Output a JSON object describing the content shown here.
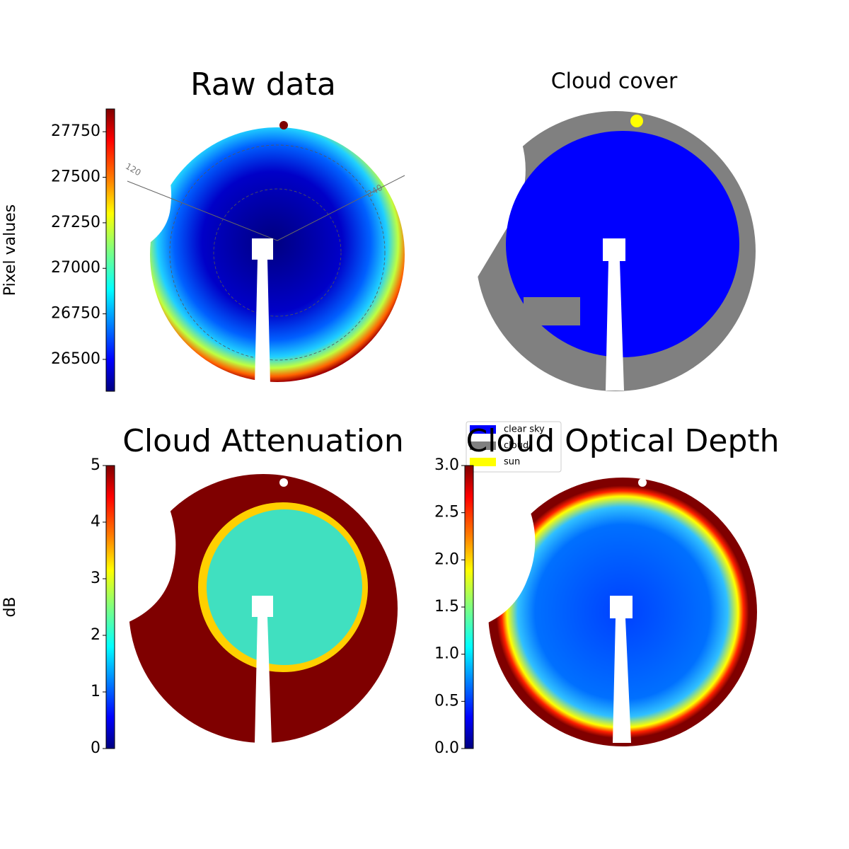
{
  "panels": [
    {
      "title": "Raw data",
      "colorbar": {
        "label": "Pixel values",
        "lim": [
          26325,
          27875
        ],
        "ticks": [
          26500,
          26750,
          27000,
          27250,
          27500,
          27750
        ]
      },
      "polar_labels": [
        "120",
        "240"
      ]
    },
    {
      "title": "Cloud cover",
      "legend": [
        {
          "name": "clear sky",
          "color": "#0000ff"
        },
        {
          "name": "cloud",
          "color": "#808080"
        },
        {
          "name": "sun",
          "color": "#ffff00"
        }
      ]
    },
    {
      "title": "Cloud Attenuation",
      "colorbar": {
        "label": "dB",
        "lim": [
          0,
          5
        ],
        "ticks": [
          0,
          1,
          2,
          3,
          4,
          5
        ]
      }
    },
    {
      "title": "Cloud Optical Depth",
      "colorbar": {
        "lim": [
          0,
          3
        ],
        "ticks": [
          {
            "value": 0,
            "label": "0.0"
          },
          {
            "value": 0.5,
            "label": "0.5"
          },
          {
            "value": 1,
            "label": "1.0"
          },
          {
            "value": 1.5,
            "label": "1.5"
          },
          {
            "value": 2,
            "label": "2.0"
          },
          {
            "value": 2.5,
            "label": "2.5"
          },
          {
            "value": 3,
            "label": "3.0"
          }
        ]
      }
    }
  ]
}
